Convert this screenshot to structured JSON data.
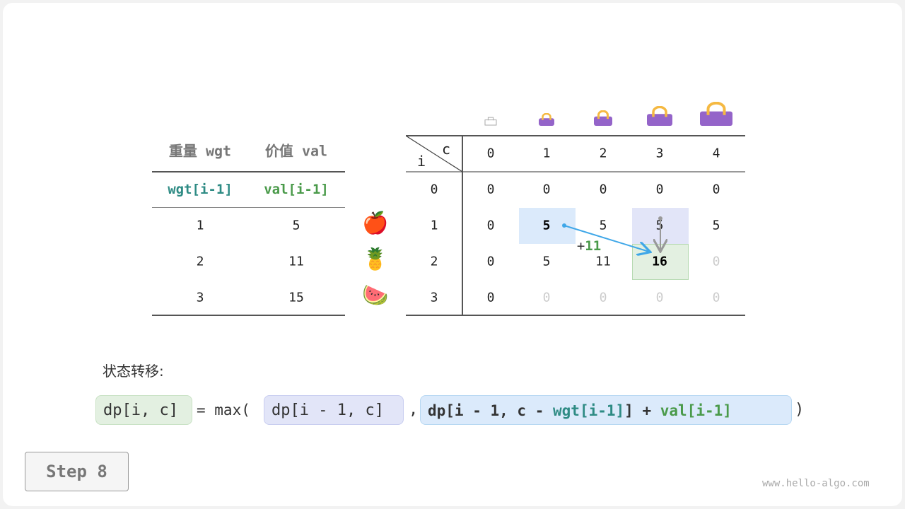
{
  "items_table": {
    "headers": [
      "重量 wgt",
      "价值 val"
    ],
    "subheaders": [
      "wgt[i-1]",
      "val[i-1]"
    ],
    "rows": [
      [
        "1",
        "5"
      ],
      [
        "2",
        "11"
      ],
      [
        "3",
        "15"
      ]
    ],
    "fruits": [
      "🍎",
      "🍍",
      "🍉"
    ]
  },
  "dp_table": {
    "corner_i": "i",
    "corner_c": "c",
    "cols": [
      "0",
      "1",
      "2",
      "3",
      "4"
    ],
    "row_labels": [
      "0",
      "1",
      "2",
      "3"
    ],
    "cells": [
      [
        "0",
        "0",
        "0",
        "0",
        "0"
      ],
      [
        "0",
        "5",
        "5",
        "5",
        "5"
      ],
      [
        "0",
        "5",
        "11",
        "16",
        "0"
      ],
      [
        "0",
        "0",
        "0",
        "0",
        "0"
      ]
    ],
    "plus_label": "+",
    "plus_value": "11"
  },
  "colors": {
    "teal": "#2e8b84",
    "green": "#4a9a4a",
    "blue_cell": "#dbeafb",
    "purple_cell": "#e2e5f8",
    "green_cell": "#e3f0e1",
    "bag": "#9464c9",
    "arrow": "#3fa7e8"
  },
  "transition": {
    "label": "状态转移:",
    "lhs": "dp[i, c]",
    "eq": "= max(",
    "a": "dp[i - 1, c]",
    "comma": ",",
    "b1": "dp[i - 1, c - ",
    "b_wgt": "wgt[i-1]",
    "b2": "] + ",
    "b_val": "val[i-1]",
    "close": ")"
  },
  "step_button": "Step 8",
  "watermark": "www.hello-algo.com"
}
